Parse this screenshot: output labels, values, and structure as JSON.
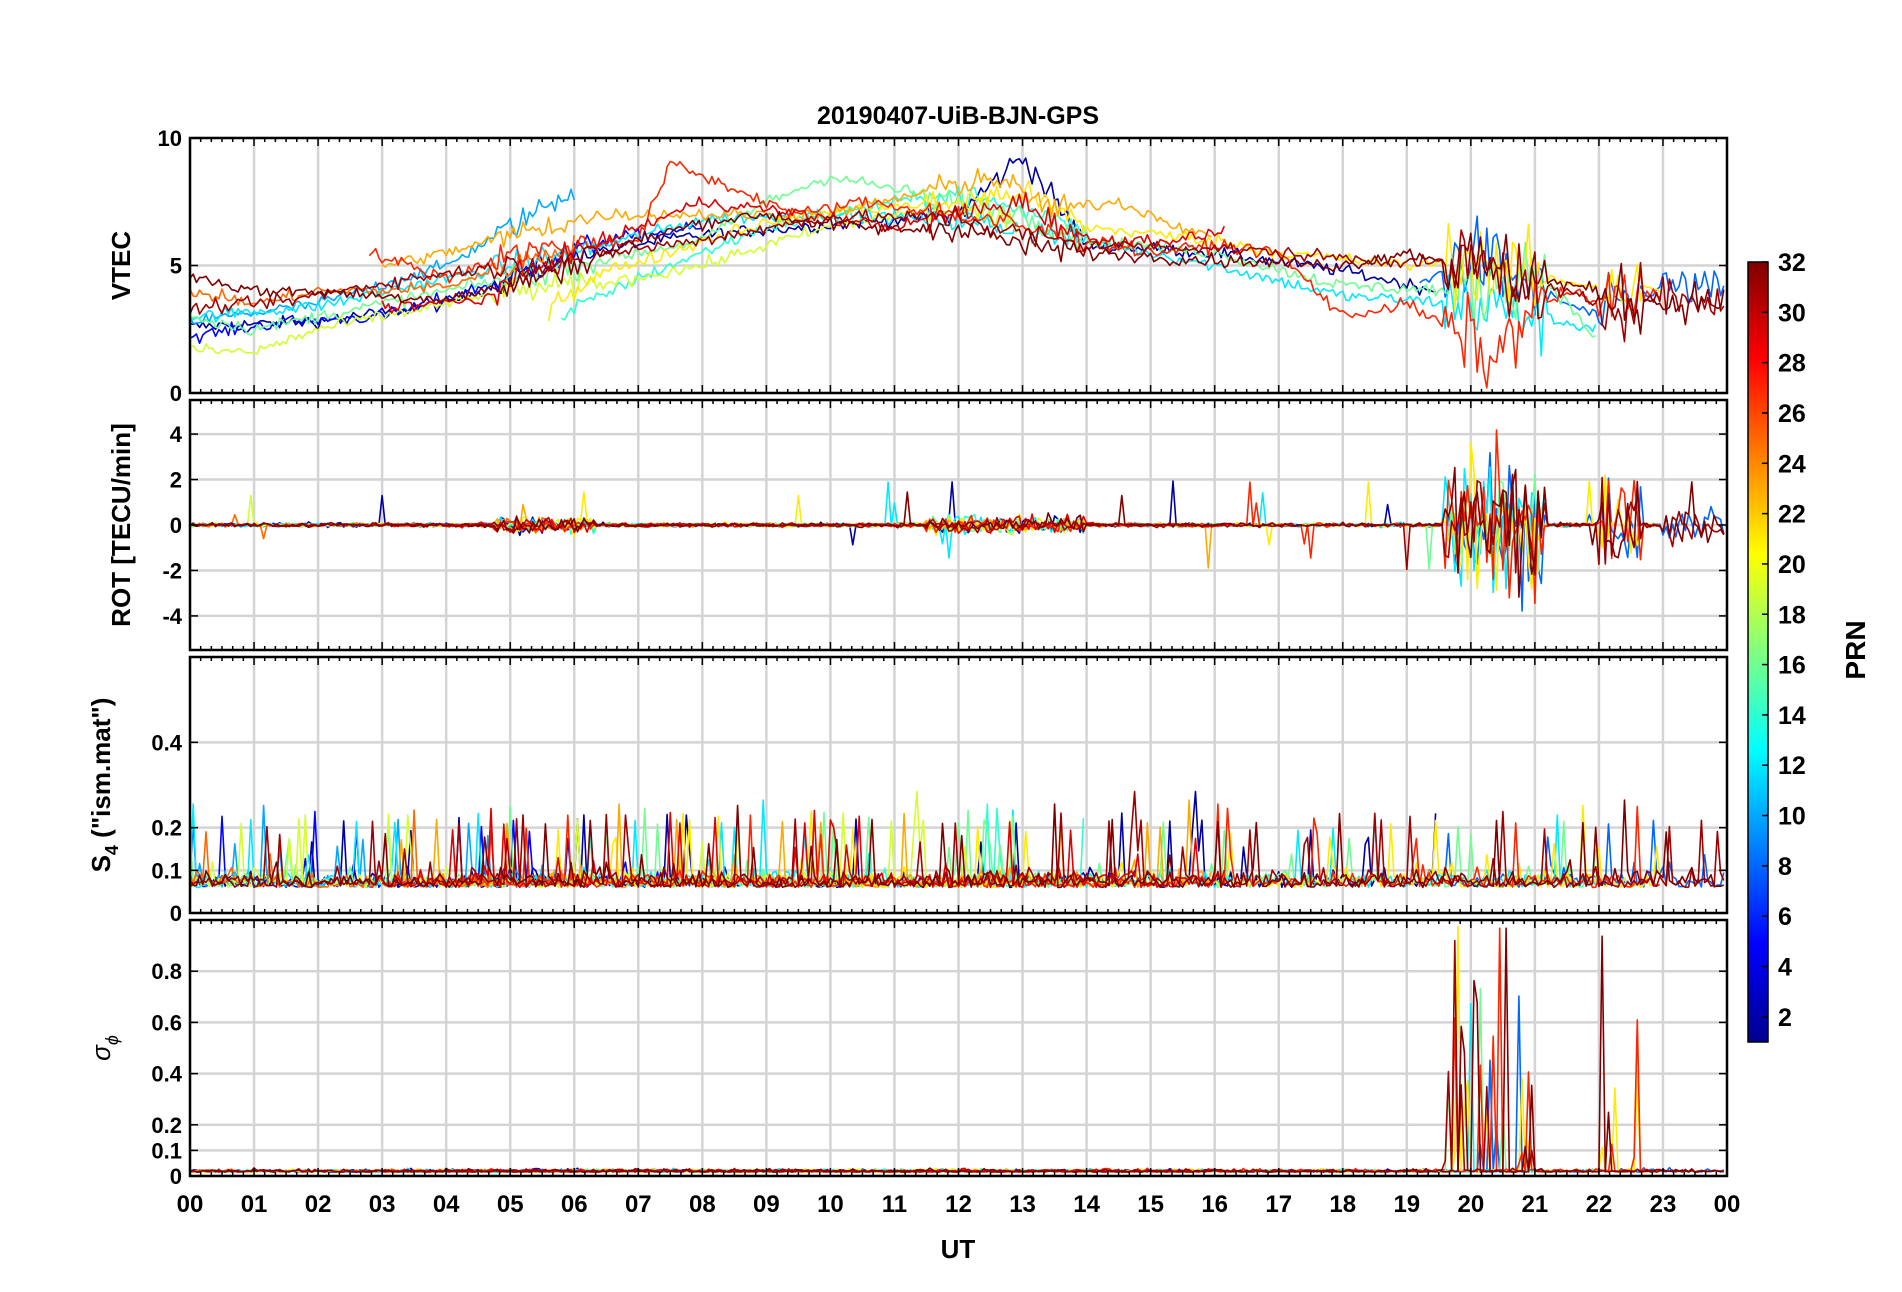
{
  "title": "20190407-UiB-BJN-GPS",
  "chart_data": {
    "type": "line",
    "title": "20190407-UiB-BJN-GPS",
    "x": {
      "label": "UT",
      "range": [
        0,
        24
      ],
      "tick_labels": [
        "00",
        "01",
        "02",
        "03",
        "04",
        "05",
        "06",
        "07",
        "08",
        "09",
        "10",
        "11",
        "12",
        "13",
        "14",
        "15",
        "16",
        "17",
        "18",
        "19",
        "20",
        "21",
        "22",
        "23",
        "00"
      ]
    },
    "panels": [
      {
        "id": "vtec",
        "ylabel": "VTEC",
        "ylim": [
          0,
          10
        ],
        "yticks": [
          "0",
          "5",
          "10"
        ],
        "ytick_values": [
          0,
          5,
          10
        ]
      },
      {
        "id": "rot",
        "ylabel": "ROT [TECU/min]",
        "ylim": [
          -5.5,
          5.5
        ],
        "yticks": [
          "-4",
          "-2",
          "0",
          "2",
          "4"
        ],
        "ytick_values": [
          -4,
          -2,
          0,
          2,
          4
        ]
      },
      {
        "id": "s4",
        "ylabel": "S",
        "ylabel_sub": "4",
        "ylabel_rest": " (\"ism.mat\")",
        "ylim": [
          0,
          0.6
        ],
        "yticks": [
          "0",
          "0.1",
          "0.2",
          "0.4"
        ],
        "ytick_values": [
          0,
          0.1,
          0.2,
          0.4
        ]
      },
      {
        "id": "sigphi",
        "ylabel": "σ",
        "ylabel_sub": "ϕ",
        "ylim": [
          0,
          1
        ],
        "yticks": [
          "0",
          "0.1",
          "0.2",
          "0.4",
          "0.6",
          "0.8"
        ],
        "ytick_values": [
          0,
          0.1,
          0.2,
          0.4,
          0.6,
          0.8
        ]
      }
    ],
    "colorbar": {
      "label": "PRN",
      "range": [
        1,
        32
      ],
      "tick_labels": [
        "2",
        "4",
        "6",
        "8",
        "10",
        "12",
        "14",
        "16",
        "18",
        "20",
        "22",
        "24",
        "26",
        "28",
        "30",
        "32"
      ],
      "tick_values": [
        2,
        4,
        6,
        8,
        10,
        12,
        14,
        16,
        18,
        20,
        22,
        24,
        26,
        28,
        30,
        32
      ],
      "colormap": "jet"
    },
    "series": [
      {
        "prn": 2,
        "vtec": [
          [
            0,
            2.6
          ],
          [
            2,
            2.8
          ],
          [
            4,
            3.5
          ],
          [
            6,
            5.5
          ],
          [
            8,
            6.2
          ],
          [
            10,
            6.6
          ],
          [
            12,
            7.0
          ],
          [
            13,
            9.3
          ],
          [
            14,
            5.8
          ],
          [
            16,
            5.5
          ],
          [
            18,
            4.8
          ],
          [
            19.5,
            4.0
          ]
        ]
      },
      {
        "prn": 5,
        "vtec": [
          [
            0,
            2.2
          ],
          [
            1.5,
            2.8
          ],
          [
            3,
            3.0
          ],
          [
            5,
            4.5
          ],
          [
            6.5,
            6.0
          ],
          [
            8,
            6.5
          ]
        ]
      },
      {
        "prn": 8,
        "vtec": [
          [
            19.2,
            4.2
          ],
          [
            20,
            5.5
          ],
          [
            21,
            4.0
          ],
          [
            22,
            3.0
          ],
          [
            23,
            4.2
          ],
          [
            24,
            4.0
          ]
        ]
      },
      {
        "prn": 10,
        "vtec": [
          [
            0,
            2.8
          ],
          [
            2,
            3.5
          ],
          [
            4,
            5.0
          ],
          [
            5,
            6.5
          ],
          [
            6,
            8.0
          ]
        ]
      },
      {
        "prn": 12,
        "vtec": [
          [
            0,
            3.0
          ],
          [
            2,
            3.4
          ],
          [
            4,
            4.5
          ],
          [
            6,
            5.5
          ],
          [
            8,
            6.8
          ],
          [
            10,
            7.0
          ],
          [
            12,
            6.8
          ],
          [
            14,
            6.0
          ],
          [
            16,
            5.0
          ],
          [
            18,
            3.8
          ],
          [
            20,
            3.5
          ],
          [
            22,
            2.5
          ]
        ]
      },
      {
        "prn": 14,
        "vtec": [
          [
            5.8,
            3.0
          ],
          [
            7,
            4.5
          ],
          [
            8,
            5.5
          ],
          [
            9,
            6.5
          ],
          [
            10,
            7.0
          ],
          [
            11,
            7.5
          ],
          [
            12,
            7.8
          ],
          [
            14,
            6.5
          ]
        ]
      },
      {
        "prn": 16,
        "vtec": [
          [
            0,
            3.0
          ],
          [
            1,
            2.5
          ],
          [
            2,
            3.0
          ],
          [
            4,
            4.0
          ],
          [
            6,
            5.0
          ],
          [
            8,
            6.0
          ],
          [
            9,
            7.5
          ],
          [
            10,
            8.5
          ],
          [
            11,
            8.0
          ],
          [
            12,
            7.5
          ],
          [
            13,
            7.0
          ],
          [
            14,
            6.0
          ],
          [
            16,
            5.5
          ],
          [
            18,
            4.2
          ],
          [
            20,
            4.0
          ],
          [
            21,
            5.0
          ],
          [
            22,
            2.0
          ]
        ]
      },
      {
        "prn": 19,
        "vtec": [
          [
            0,
            1.7
          ],
          [
            1,
            1.6
          ],
          [
            2,
            2.5
          ],
          [
            3,
            3.0
          ],
          [
            5,
            4.0
          ],
          [
            6.5,
            4.3
          ],
          [
            8,
            5.0
          ],
          [
            9,
            5.8
          ],
          [
            10,
            6.5
          ],
          [
            11,
            7.0
          ],
          [
            12,
            7.2
          ],
          [
            13,
            6.5
          ]
        ]
      },
      {
        "prn": 21,
        "vtec": [
          [
            5.6,
            3.5
          ],
          [
            6.5,
            4.8
          ],
          [
            7.5,
            5.5
          ],
          [
            8.5,
            6.4
          ],
          [
            10,
            7.1
          ],
          [
            12,
            7.5
          ],
          [
            13,
            7.9
          ],
          [
            14,
            6.5
          ],
          [
            16,
            6.0
          ],
          [
            17,
            5.5
          ],
          [
            19,
            5.0
          ],
          [
            20,
            5.2
          ],
          [
            21,
            4.5
          ],
          [
            22,
            4.2
          ],
          [
            23,
            4.0
          ]
        ]
      },
      {
        "prn": 23,
        "vtec": [
          [
            3,
            5.0
          ],
          [
            4,
            5.5
          ],
          [
            5.5,
            6.5
          ],
          [
            6.5,
            7.0
          ],
          [
            8,
            7.0
          ],
          [
            10,
            7.0
          ],
          [
            12,
            8.2
          ],
          [
            12.5,
            8.5
          ],
          [
            13.5,
            7.2
          ],
          [
            14.5,
            7.5
          ],
          [
            16,
            6.0
          ]
        ]
      },
      {
        "prn": 25,
        "vtec": [
          [
            0,
            4.0
          ],
          [
            1,
            3.5
          ],
          [
            2,
            4.0
          ],
          [
            3,
            4.0
          ],
          [
            4,
            4.2
          ],
          [
            5,
            5.0
          ],
          [
            6,
            5.8
          ]
        ]
      },
      {
        "prn": 27,
        "vtec": [
          [
            2.8,
            5.5
          ],
          [
            4,
            4.5
          ],
          [
            5,
            5.5
          ],
          [
            6,
            5.8
          ],
          [
            7,
            6.0
          ],
          [
            7.5,
            9.0
          ],
          [
            8.5,
            8.0
          ],
          [
            9.5,
            7.0
          ],
          [
            10.5,
            7.5
          ],
          [
            12,
            7.0
          ],
          [
            13,
            6.5
          ],
          [
            14,
            6.0
          ],
          [
            15,
            5.5
          ],
          [
            16,
            5.8
          ],
          [
            17,
            5.5
          ],
          [
            18,
            3.0
          ],
          [
            19,
            3.5
          ],
          [
            20,
            2.0
          ],
          [
            20.4,
            1.2
          ],
          [
            20.8,
            3.0
          ],
          [
            21.5,
            4.0
          ],
          [
            22,
            3.5
          ],
          [
            23,
            4.0
          ]
        ]
      },
      {
        "prn": 29,
        "vtec": [
          [
            3,
            3.4
          ],
          [
            4.5,
            3.6
          ],
          [
            5.5,
            5.0
          ],
          [
            7,
            6.5
          ],
          [
            8,
            7.5
          ],
          [
            9,
            7.2
          ],
          [
            11,
            6.5
          ],
          [
            13,
            7.5
          ],
          [
            14,
            6.0
          ],
          [
            15.5,
            6.0
          ],
          [
            16.2,
            6.4
          ]
        ]
      },
      {
        "prn": 31,
        "vtec": [
          [
            0,
            3.3
          ],
          [
            1.5,
            3.6
          ],
          [
            3,
            4.3
          ],
          [
            4,
            4.7
          ],
          [
            6,
            5.3
          ],
          [
            8,
            6.0
          ],
          [
            10,
            6.9
          ],
          [
            12,
            6.9
          ],
          [
            13,
            6.2
          ],
          [
            14,
            5.8
          ],
          [
            16,
            5.7
          ],
          [
            18,
            5.3
          ],
          [
            20,
            5.0
          ],
          [
            22,
            3.5
          ],
          [
            23,
            3.8
          ],
          [
            24,
            3.4
          ]
        ]
      },
      {
        "prn": 32,
        "vtec": [
          [
            0,
            4.6
          ],
          [
            1,
            4.0
          ],
          [
            2,
            4.0
          ],
          [
            3,
            3.8
          ],
          [
            4,
            3.7
          ],
          [
            5,
            4.2
          ],
          [
            6,
            5.0
          ],
          [
            7,
            6.0
          ],
          [
            8,
            6.7
          ],
          [
            9,
            7.0
          ],
          [
            10,
            6.6
          ],
          [
            11,
            6.4
          ],
          [
            12,
            6.5
          ],
          [
            13,
            5.8
          ],
          [
            14,
            5.5
          ],
          [
            16,
            5.2
          ],
          [
            18,
            5.0
          ],
          [
            19,
            5.5
          ],
          [
            20,
            5.0
          ],
          [
            21,
            4.5
          ],
          [
            22,
            4.0
          ],
          [
            23,
            3.5
          ],
          [
            24,
            3.7
          ]
        ]
      }
    ]
  }
}
